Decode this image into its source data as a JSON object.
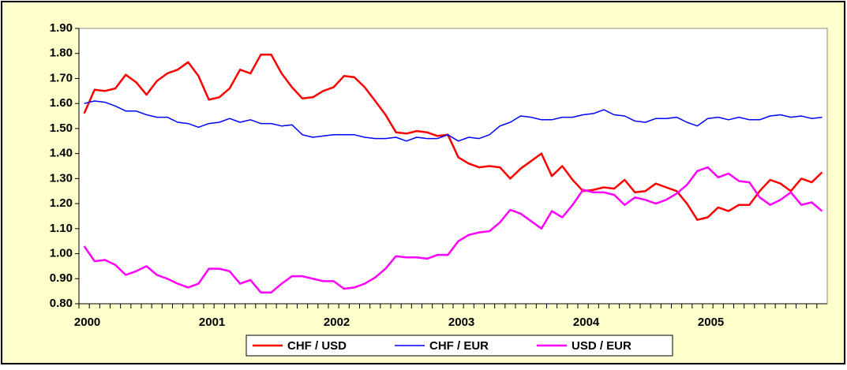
{
  "chart_data": {
    "type": "line",
    "categories": [
      "2000",
      null,
      null,
      null,
      null,
      null,
      null,
      null,
      null,
      null,
      null,
      null,
      "2001",
      null,
      null,
      null,
      null,
      null,
      null,
      null,
      null,
      null,
      null,
      null,
      "2002",
      null,
      null,
      null,
      null,
      null,
      null,
      null,
      null,
      null,
      null,
      null,
      "2003",
      null,
      null,
      null,
      null,
      null,
      null,
      null,
      null,
      null,
      null,
      null,
      "2004",
      null,
      null,
      null,
      null,
      null,
      null,
      null,
      null,
      null,
      null,
      null,
      "2005",
      null,
      null,
      null,
      null,
      null,
      null,
      null,
      null,
      null,
      null,
      null
    ],
    "series": [
      {
        "name": "CHF / USD",
        "color": "#ff0000",
        "values": [
          1.56,
          1.655,
          1.65,
          1.66,
          1.715,
          1.685,
          1.635,
          1.69,
          1.72,
          1.735,
          1.765,
          1.71,
          1.615,
          1.625,
          1.66,
          1.735,
          1.72,
          1.795,
          1.795,
          1.72,
          1.665,
          1.62,
          1.625,
          1.65,
          1.665,
          1.71,
          1.705,
          1.665,
          1.61,
          1.555,
          1.485,
          1.48,
          1.49,
          1.485,
          1.47,
          1.475,
          1.385,
          1.36,
          1.345,
          1.35,
          1.345,
          1.3,
          1.34,
          1.37,
          1.4,
          1.31,
          1.35,
          1.295,
          1.25,
          1.255,
          1.265,
          1.26,
          1.295,
          1.245,
          1.25,
          1.28,
          1.265,
          1.25,
          1.2,
          1.135,
          1.145,
          1.185,
          1.17,
          1.195,
          1.195,
          1.25,
          1.295,
          1.28,
          1.25,
          1.3,
          1.285,
          1.325
        ]
      },
      {
        "name": "CHF / EUR",
        "color": "#0000ff",
        "values": [
          1.6,
          1.61,
          1.605,
          1.59,
          1.57,
          1.57,
          1.555,
          1.545,
          1.545,
          1.525,
          1.52,
          1.505,
          1.52,
          1.525,
          1.54,
          1.525,
          1.535,
          1.52,
          1.52,
          1.51,
          1.515,
          1.475,
          1.465,
          1.47,
          1.475,
          1.475,
          1.475,
          1.465,
          1.46,
          1.46,
          1.465,
          1.45,
          1.465,
          1.46,
          1.46,
          1.475,
          1.45,
          1.465,
          1.46,
          1.475,
          1.51,
          1.525,
          1.55,
          1.545,
          1.535,
          1.535,
          1.545,
          1.545,
          1.555,
          1.56,
          1.575,
          1.555,
          1.55,
          1.53,
          1.525,
          1.54,
          1.54,
          1.545,
          1.525,
          1.51,
          1.54,
          1.545,
          1.535,
          1.545,
          1.535,
          1.535,
          1.55,
          1.555,
          1.545,
          1.55,
          1.54,
          1.545
        ]
      },
      {
        "name": "USD / EUR",
        "color": "#ff00ff",
        "values": [
          1.03,
          0.97,
          0.975,
          0.955,
          0.915,
          0.93,
          0.95,
          0.915,
          0.9,
          0.88,
          0.865,
          0.88,
          0.94,
          0.94,
          0.93,
          0.88,
          0.895,
          0.845,
          0.845,
          0.88,
          0.91,
          0.91,
          0.9,
          0.89,
          0.89,
          0.86,
          0.865,
          0.88,
          0.905,
          0.94,
          0.99,
          0.985,
          0.985,
          0.98,
          0.995,
          0.995,
          1.05,
          1.075,
          1.085,
          1.09,
          1.125,
          1.175,
          1.16,
          1.13,
          1.1,
          1.17,
          1.145,
          1.195,
          1.255,
          1.245,
          1.245,
          1.235,
          1.195,
          1.225,
          1.215,
          1.2,
          1.215,
          1.24,
          1.275,
          1.33,
          1.345,
          1.305,
          1.32,
          1.29,
          1.285,
          1.225,
          1.195,
          1.215,
          1.245,
          1.195,
          1.205,
          1.17
        ]
      }
    ],
    "ylim": [
      0.8,
      1.9
    ],
    "yticks": [
      {
        "value": 0.8,
        "label": "0.80"
      },
      {
        "value": 0.9,
        "label": "0.90"
      },
      {
        "value": 1.0,
        "label": "1.00"
      },
      {
        "value": 1.1,
        "label": "1.10"
      },
      {
        "value": 1.2,
        "label": "1.20"
      },
      {
        "value": 1.3,
        "label": "1.30"
      },
      {
        "value": 1.4,
        "label": "1.40"
      },
      {
        "value": 1.5,
        "label": "1.50"
      },
      {
        "value": 1.6,
        "label": "1.60"
      },
      {
        "value": 1.7,
        "label": "1.70"
      },
      {
        "value": 1.8,
        "label": "1.80"
      },
      {
        "value": 1.9,
        "label": "1.90"
      }
    ],
    "grid": false,
    "legend": "bottom"
  }
}
